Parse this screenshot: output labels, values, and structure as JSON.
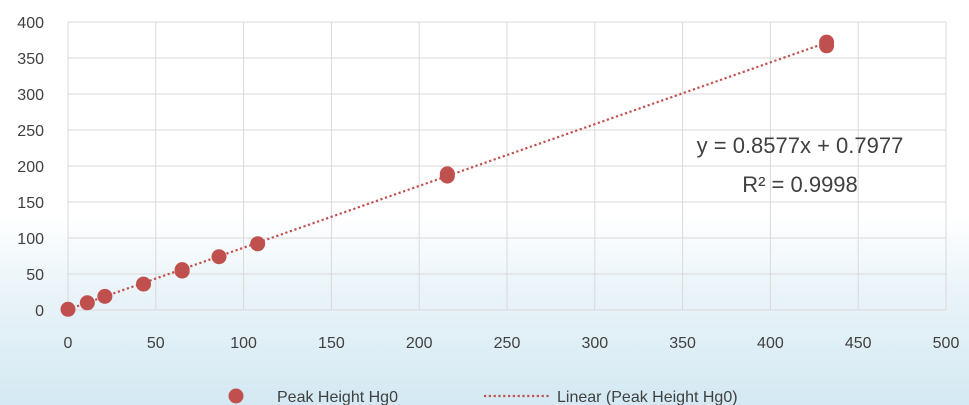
{
  "chart_data": {
    "type": "scatter",
    "title": "",
    "xlabel": "",
    "ylabel": "",
    "xlim": [
      0,
      500
    ],
    "ylim": [
      0,
      400
    ],
    "x_ticks": [
      0,
      50,
      100,
      150,
      200,
      250,
      300,
      350,
      400,
      450,
      500
    ],
    "y_ticks": [
      0,
      50,
      100,
      150,
      200,
      250,
      300,
      350,
      400
    ],
    "grid": true,
    "legend_position": "bottom",
    "series": [
      {
        "name": "Peak Height Hg0",
        "color": "#c0504d",
        "marker": "circle",
        "points": [
          {
            "x": 0,
            "y": 1
          },
          {
            "x": 11,
            "y": 10
          },
          {
            "x": 21,
            "y": 19
          },
          {
            "x": 43,
            "y": 36
          },
          {
            "x": 65,
            "y": 54
          },
          {
            "x": 65,
            "y": 56
          },
          {
            "x": 86,
            "y": 74
          },
          {
            "x": 108,
            "y": 92
          },
          {
            "x": 216,
            "y": 186
          },
          {
            "x": 216,
            "y": 189
          },
          {
            "x": 432,
            "y": 367
          },
          {
            "x": 432,
            "y": 372
          }
        ]
      }
    ],
    "trendline": {
      "name": "Linear (Peak Height Hg0)",
      "type": "linear",
      "slope": 0.8577,
      "intercept": 0.7977,
      "x_range": [
        0,
        432
      ],
      "color": "#c0504d",
      "style": "dotted"
    },
    "annotations": {
      "equation": "y = 0.8577x + 0.7977",
      "r_squared": "R² = 0.9998"
    }
  }
}
